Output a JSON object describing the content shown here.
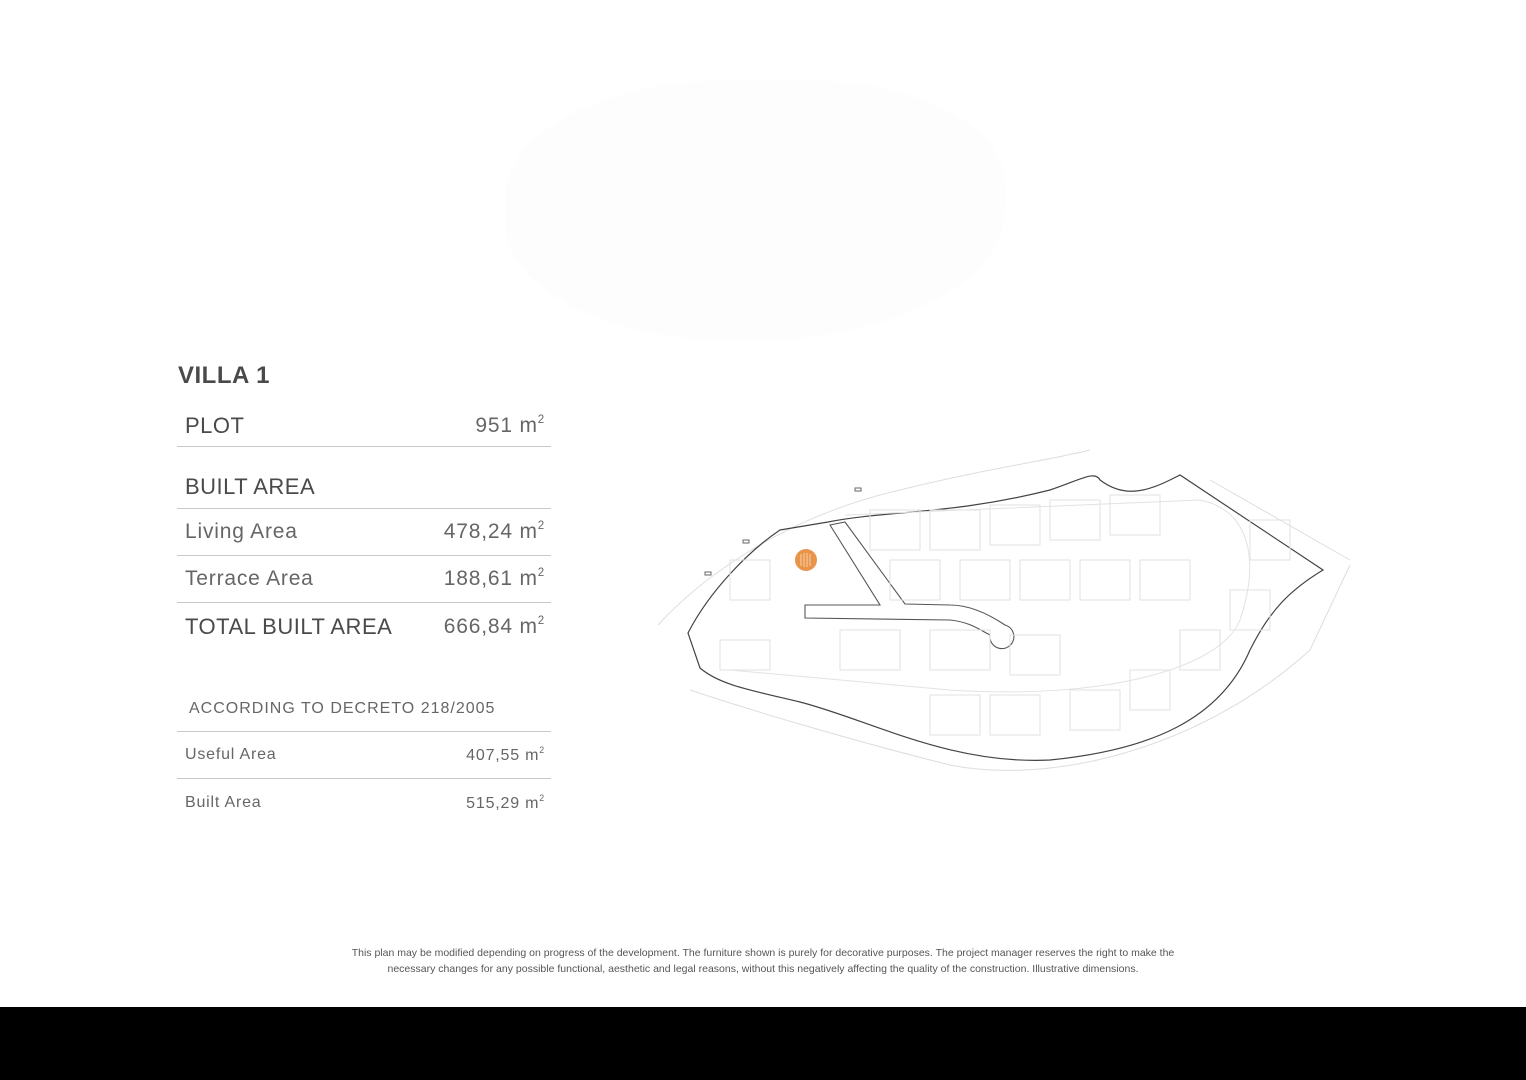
{
  "villa": {
    "title": "VILLA 1",
    "plot": {
      "label": "PLOT",
      "value": "951 m",
      "unit_sup": "2"
    },
    "built_area_heading": "BUILT AREA",
    "living": {
      "label": "Living Area",
      "value": "478,24 m",
      "unit_sup": "2"
    },
    "terrace": {
      "label": "Terrace Area",
      "value": "188,61 m",
      "unit_sup": "2"
    },
    "total": {
      "label": "TOTAL BUILT AREA",
      "value": "666,84 m",
      "unit_sup": "2"
    }
  },
  "decreto": {
    "heading": "ACCORDING TO DECRETO 218/2005",
    "useful": {
      "label": "Useful Area",
      "value": "407,55 m",
      "unit_sup": "2"
    },
    "built": {
      "label": "Built Area",
      "value": "515,29 m",
      "unit_sup": "2"
    }
  },
  "site_plan": {
    "marker_color": "#e8944a",
    "icon": "site-plan-map"
  },
  "disclaimer": {
    "line1": "This plan may be modified depending on progress of the development. The furniture shown is purely for decorative purposes. The project manager reserves the right to make the",
    "line2": "necessary changes for any possible functional, aesthetic and legal reasons, without this negatively affecting the quality of the construction. Illustrative dimensions."
  }
}
